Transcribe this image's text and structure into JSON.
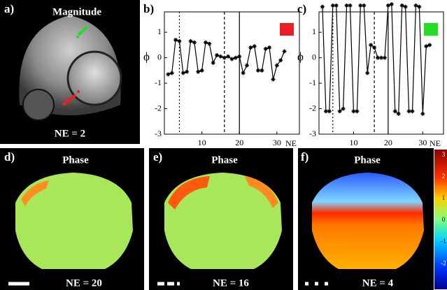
{
  "panels": {
    "a": {
      "label": "a)",
      "title": "Magnitude",
      "caption": "NE = 2"
    },
    "d": {
      "label": "d)",
      "title": "Phase",
      "caption": "NE = 20"
    },
    "e": {
      "label": "e)",
      "title": "Phase",
      "caption": "NE = 16"
    },
    "f": {
      "label": "f)",
      "title": "Phase",
      "caption": "NE = 4"
    }
  },
  "colorbar": {
    "ticks": [
      3,
      2,
      1,
      0,
      -1,
      -2
    ]
  },
  "chart_data": [
    {
      "type": "line",
      "panel_label": "b)",
      "y_label": "ϕ",
      "x_label": "NE",
      "marker_color": "#ee1c24",
      "line_color": "#000000",
      "x": [
        1,
        2,
        3,
        4,
        5,
        6,
        7,
        8,
        9,
        10,
        11,
        12,
        13,
        14,
        15,
        16,
        17,
        18,
        19,
        20,
        21,
        22,
        23,
        24,
        25,
        26,
        27,
        28,
        29,
        30,
        31,
        32
      ],
      "values": [
        -0.65,
        -0.6,
        0.7,
        0.65,
        -0.6,
        -0.55,
        0.65,
        0.6,
        -0.55,
        -0.5,
        0.6,
        0.55,
        -0.2,
        0.1,
        0.05,
        0.0,
        0.05,
        -0.05,
        0.0,
        0.05,
        -0.6,
        -0.3,
        0.4,
        0.45,
        -0.5,
        -0.5,
        0.35,
        0.4,
        -0.85,
        -0.3,
        -0.1,
        0.25
      ],
      "xlim": [
        0,
        36
      ],
      "xticks": [
        10,
        20,
        30
      ],
      "ylim": [
        -3,
        1.8
      ],
      "yticks": [
        1,
        0,
        -1,
        -2,
        -3
      ],
      "vlines": [
        {
          "x": 4,
          "style": "dotted"
        },
        {
          "x": 16,
          "style": "dashed"
        },
        {
          "x": 20,
          "style": "solid"
        }
      ]
    },
    {
      "type": "line",
      "panel_label": "c)",
      "y_label": "ϕ",
      "x_label": "NE",
      "marker_color": "#22dd22",
      "line_color": "#000000",
      "x": [
        1,
        2,
        3,
        4,
        5,
        6,
        7,
        8,
        9,
        10,
        11,
        12,
        13,
        14,
        15,
        16,
        17,
        18,
        19,
        20,
        21,
        22,
        23,
        24,
        25,
        26,
        27,
        28,
        29,
        30,
        31,
        32
      ],
      "values": [
        2.0,
        -2.1,
        -2.1,
        2.05,
        2.05,
        -2.1,
        -2.0,
        2.05,
        2.05,
        -2.1,
        -2.1,
        2.05,
        2.05,
        -0.6,
        0.5,
        0.4,
        0.0,
        0.0,
        0.0,
        2.05,
        2.1,
        -2.1,
        -2.2,
        2.05,
        2.0,
        -2.1,
        -2.1,
        2.05,
        2.0,
        -2.2,
        0.45,
        0.5
      ],
      "xlim": [
        0,
        36
      ],
      "xticks": [
        10,
        20,
        30
      ],
      "ylim": [
        -3,
        1.8
      ],
      "yticks": [
        1,
        0,
        -1,
        -2,
        -3
      ],
      "vlines": [
        {
          "x": 4,
          "style": "dotted"
        },
        {
          "x": 16,
          "style": "dashed"
        },
        {
          "x": 20,
          "style": "solid"
        }
      ]
    }
  ]
}
